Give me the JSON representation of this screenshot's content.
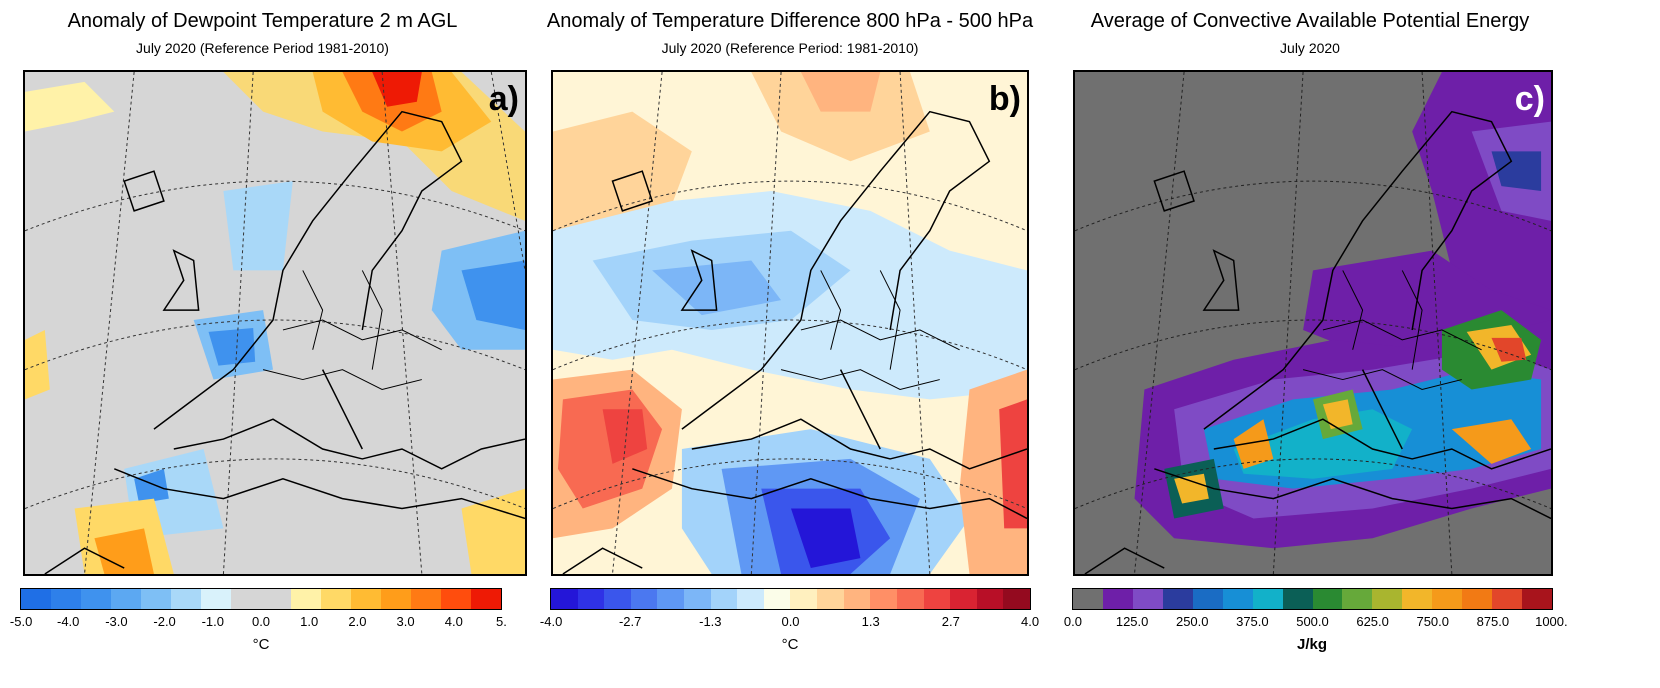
{
  "panels": [
    {
      "title": "Anomaly of Dewpoint Temperature 2 m AGL",
      "subtitle": "July 2020 (Reference Period 1981-2010)",
      "letter": "a)",
      "unit": "°C",
      "background": "#d6d6d6",
      "colors": [
        "#1f6fe6",
        "#2e80ea",
        "#3f92ee",
        "#5ca8f2",
        "#7ebff5",
        "#a9d8f8",
        "#d9f2fb",
        "#d6d6d6",
        "#d6d6d6",
        "#fff2a8",
        "#ffd966",
        "#ffbb33",
        "#ff9d1a",
        "#ff7a14",
        "#ff4d0d",
        "#ee1a05"
      ],
      "ticks": [
        "-5.0",
        "-4.0",
        "-3.0",
        "-2.0",
        "-1.0",
        "0.0",
        "1.0",
        "2.0",
        "3.0",
        "4.0",
        "5."
      ]
    },
    {
      "title": "Anomaly of Temperature Difference 800 hPa - 500 hPa",
      "subtitle": "July 2020 (Reference Period: 1981-2010)",
      "letter": "b)",
      "unit": "°C",
      "background": "#fff5d6",
      "colors": [
        "#2416d8",
        "#2f32e6",
        "#3a56ec",
        "#4b78f0",
        "#5f98f4",
        "#7cb6f7",
        "#a3d3fa",
        "#cdeafc",
        "#fbfde9",
        "#fff0bf",
        "#ffd49a",
        "#ffb47f",
        "#ff8f66",
        "#f86a52",
        "#ee4340",
        "#d92332",
        "#b80f27",
        "#940a1f"
      ],
      "ticks": [
        "-4.0",
        "-2.7",
        "-1.3",
        "0.0",
        "1.3",
        "2.7",
        "4.0"
      ]
    },
    {
      "title": "Average of Convective Available Potential Energy",
      "subtitle": "July 2020",
      "letter": "c)",
      "unit": "J/kg",
      "background": "#707070",
      "colors": [
        "#707070",
        "#6e1fa8",
        "#7f4bc5",
        "#2b3c9e",
        "#1a6cc4",
        "#178fd6",
        "#12b1c9",
        "#0b5f56",
        "#2a8a32",
        "#66a93a",
        "#a9b52f",
        "#f2b62a",
        "#f59a1a",
        "#f27a14",
        "#e2462a",
        "#a8141c"
      ],
      "ticks": [
        "0.0",
        "125.0",
        "250.0",
        "375.0",
        "500.0",
        "625.0",
        "750.0",
        "875.0",
        "1000."
      ]
    }
  ]
}
